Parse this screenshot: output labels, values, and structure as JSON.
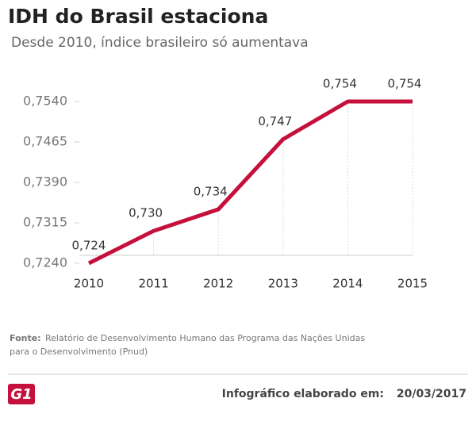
{
  "chart_data": {
    "type": "line",
    "title": "IDH do Brasil estaciona",
    "subtitle": "Desde 2010, índice brasileiro só aumentava",
    "categories": [
      "2010",
      "2011",
      "2012",
      "2013",
      "2014",
      "2015"
    ],
    "series": [
      {
        "color": "#c4103b",
        "values": [
          0.724,
          0.73,
          0.734,
          0.747,
          0.754,
          0.754
        ],
        "value_labels": [
          "0,724",
          "0,730",
          "0,734",
          "0,747",
          "0,754",
          "0,754"
        ]
      }
    ],
    "ylim": [
      0.724,
      0.754
    ],
    "yticks": [
      {
        "value": 0.754,
        "label": "0,7540"
      },
      {
        "value": 0.7465,
        "label": "0,7465"
      },
      {
        "value": 0.739,
        "label": "0,7390"
      },
      {
        "value": 0.7315,
        "label": "0,7315"
      },
      {
        "value": 0.724,
        "label": "0,7240"
      }
    ],
    "grid": false
  },
  "footer": {
    "source_label": "Fonte:",
    "source_text": "Relatório de Desenvolvimento Humano das Programa das Nações Unidas",
    "source_text_2": "para o Desenvolvimento (Pnud)",
    "logo": "G1",
    "credit": "Infográfico elaborado em:",
    "date": "20/03/2017"
  }
}
